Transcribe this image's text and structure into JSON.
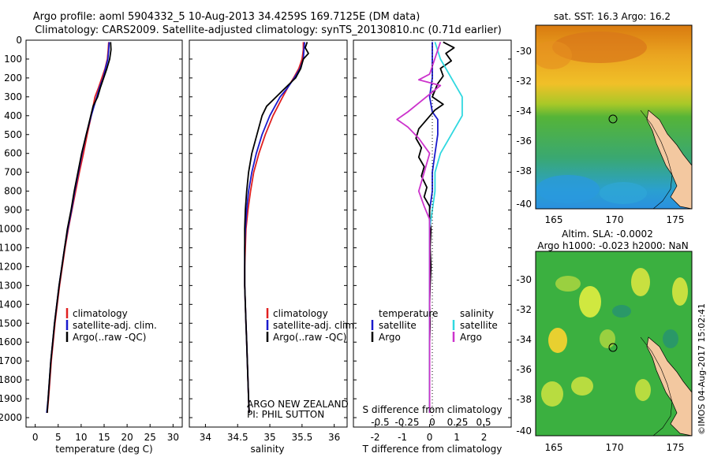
{
  "title": {
    "line1": "Argo profile: aoml 5904332_5 10-Aug-2013 34.4259S 169.7125E (DM data)",
    "line2": "Climatology: CARS2009. Satellite-adjusted climatology: synTS_20130810.nc (0.71d earlier)"
  },
  "colors": {
    "climatology": "#e02020",
    "satellite": "#1a1acc",
    "argo": "#000000",
    "sat_cyan": "#30d8e0",
    "argo_mag": "#cc33cc",
    "land": "#f3c8a0"
  },
  "chart_data": [
    {
      "type": "line",
      "id": "temperature",
      "xlabel": "temperature (deg C)",
      "xlim": [
        -2,
        32
      ],
      "xticks": [
        0,
        5,
        10,
        15,
        20,
        25,
        30
      ],
      "ylim": [
        2050,
        0
      ],
      "yticks": [
        0,
        100,
        200,
        300,
        400,
        500,
        600,
        700,
        800,
        900,
        1000,
        1100,
        1200,
        1300,
        1400,
        1500,
        1600,
        1700,
        1800,
        1900,
        2000
      ],
      "legend": [
        "climatology",
        "satellite-adj. clim.",
        "Argo(..raw -QC)"
      ],
      "series": [
        {
          "name": "climatology",
          "color": "#e02020",
          "points": [
            [
              16.0,
              10
            ],
            [
              15.9,
              50
            ],
            [
              15.7,
              100
            ],
            [
              15.2,
              150
            ],
            [
              14.5,
              200
            ],
            [
              13.8,
              250
            ],
            [
              13.0,
              300
            ],
            [
              12.2,
              400
            ],
            [
              11.3,
              500
            ],
            [
              10.5,
              600
            ],
            [
              9.6,
              700
            ],
            [
              8.8,
              800
            ],
            [
              8.0,
              900
            ],
            [
              7.2,
              1000
            ],
            [
              6.5,
              1100
            ],
            [
              5.9,
              1200
            ],
            [
              5.3,
              1300
            ],
            [
              4.8,
              1400
            ],
            [
              4.3,
              1500
            ],
            [
              3.9,
              1600
            ],
            [
              3.5,
              1700
            ],
            [
              3.2,
              1800
            ],
            [
              2.9,
              1900
            ],
            [
              2.6,
              1975
            ]
          ]
        },
        {
          "name": "satellite-adj. clim.",
          "color": "#1a1acc",
          "points": [
            [
              16.1,
              10
            ],
            [
              16.0,
              50
            ],
            [
              15.8,
              100
            ],
            [
              15.3,
              150
            ],
            [
              14.8,
              200
            ],
            [
              14.0,
              250
            ],
            [
              13.4,
              300
            ],
            [
              12.2,
              400
            ],
            [
              11.1,
              500
            ],
            [
              10.2,
              600
            ],
            [
              9.4,
              700
            ],
            [
              8.6,
              800
            ],
            [
              7.9,
              900
            ],
            [
              7.1,
              1000
            ],
            [
              6.4,
              1100
            ],
            [
              5.8,
              1200
            ],
            [
              5.2,
              1300
            ],
            [
              4.7,
              1400
            ],
            [
              4.2,
              1500
            ],
            [
              3.8,
              1600
            ],
            [
              3.4,
              1700
            ],
            [
              3.1,
              1800
            ],
            [
              2.8,
              1900
            ],
            [
              2.5,
              1975
            ]
          ]
        },
        {
          "name": "Argo(..raw -QC)",
          "color": "#000000",
          "points": [
            [
              16.4,
              10
            ],
            [
              16.5,
              50
            ],
            [
              16.2,
              100
            ],
            [
              15.6,
              150
            ],
            [
              14.9,
              200
            ],
            [
              14.2,
              250
            ],
            [
              13.6,
              300
            ],
            [
              12.6,
              350
            ],
            [
              12.1,
              400
            ],
            [
              11.1,
              500
            ],
            [
              10.1,
              600
            ],
            [
              9.3,
              700
            ],
            [
              8.5,
              800
            ],
            [
              7.8,
              900
            ],
            [
              7.0,
              1000
            ],
            [
              6.4,
              1100
            ],
            [
              5.8,
              1200
            ],
            [
              5.2,
              1300
            ],
            [
              4.7,
              1400
            ],
            [
              4.2,
              1500
            ],
            [
              3.8,
              1600
            ],
            [
              3.4,
              1700
            ],
            [
              3.1,
              1800
            ],
            [
              2.8,
              1900
            ],
            [
              2.6,
              1975
            ]
          ]
        }
      ]
    },
    {
      "type": "line",
      "id": "salinity",
      "xlabel": "salinity",
      "xlim": [
        33.75,
        36.2
      ],
      "xticks": [
        34,
        34.5,
        35,
        35.5,
        36
      ],
      "ylim": [
        2050,
        0
      ],
      "legend": [
        "climatology",
        "satellite-adj. clim.",
        "Argo(..raw -QC)"
      ],
      "annotations": [
        "ARGO NEW ZEALAND",
        "PI: PHIL SUTTON"
      ],
      "series": [
        {
          "name": "climatology",
          "color": "#e02020",
          "points": [
            [
              35.52,
              10
            ],
            [
              35.52,
              50
            ],
            [
              35.5,
              100
            ],
            [
              35.45,
              150
            ],
            [
              35.37,
              200
            ],
            [
              35.28,
              250
            ],
            [
              35.2,
              300
            ],
            [
              35.05,
              400
            ],
            [
              34.93,
              500
            ],
            [
              34.83,
              600
            ],
            [
              34.75,
              700
            ],
            [
              34.7,
              800
            ],
            [
              34.66,
              900
            ],
            [
              34.63,
              1000
            ],
            [
              34.62,
              1100
            ],
            [
              34.61,
              1200
            ],
            [
              34.61,
              1300
            ],
            [
              34.62,
              1400
            ],
            [
              34.63,
              1500
            ],
            [
              34.64,
              1600
            ],
            [
              34.65,
              1700
            ],
            [
              34.66,
              1800
            ],
            [
              34.67,
              1900
            ],
            [
              34.68,
              1975
            ]
          ]
        },
        {
          "name": "satellite-adj. clim.",
          "color": "#1a1acc",
          "points": [
            [
              35.54,
              10
            ],
            [
              35.53,
              50
            ],
            [
              35.52,
              100
            ],
            [
              35.47,
              150
            ],
            [
              35.38,
              200
            ],
            [
              35.28,
              250
            ],
            [
              35.16,
              300
            ],
            [
              35.0,
              400
            ],
            [
              34.88,
              500
            ],
            [
              34.79,
              600
            ],
            [
              34.72,
              700
            ],
            [
              34.67,
              800
            ],
            [
              34.64,
              900
            ],
            [
              34.62,
              1000
            ],
            [
              34.61,
              1100
            ],
            [
              34.61,
              1200
            ],
            [
              34.61,
              1300
            ],
            [
              34.62,
              1400
            ],
            [
              34.63,
              1500
            ],
            [
              34.64,
              1600
            ],
            [
              34.65,
              1700
            ],
            [
              34.66,
              1800
            ],
            [
              34.67,
              1900
            ],
            [
              34.68,
              1975
            ]
          ]
        },
        {
          "name": "Argo(..raw -QC)",
          "color": "#000000",
          "points": [
            [
              35.58,
              10
            ],
            [
              35.55,
              40
            ],
            [
              35.6,
              70
            ],
            [
              35.52,
              100
            ],
            [
              35.48,
              150
            ],
            [
              35.4,
              200
            ],
            [
              35.25,
              250
            ],
            [
              35.1,
              300
            ],
            [
              34.95,
              350
            ],
            [
              34.88,
              400
            ],
            [
              34.8,
              500
            ],
            [
              34.72,
              600
            ],
            [
              34.67,
              700
            ],
            [
              34.64,
              800
            ],
            [
              34.62,
              900
            ],
            [
              34.61,
              1000
            ],
            [
              34.61,
              1100
            ],
            [
              34.61,
              1200
            ],
            [
              34.61,
              1300
            ],
            [
              34.62,
              1400
            ],
            [
              34.63,
              1500
            ],
            [
              34.64,
              1600
            ],
            [
              34.65,
              1700
            ],
            [
              34.66,
              1800
            ],
            [
              34.67,
              1900
            ],
            [
              34.68,
              1975
            ]
          ]
        }
      ]
    },
    {
      "type": "line",
      "id": "differences",
      "xlabel_top": "S difference from climatology",
      "xticks_top": [
        "-0.5",
        "-0.25",
        "0",
        "0.25",
        "0.5"
      ],
      "xlabel_bottom": "T difference from climatology",
      "xticks_bottom": [
        "-2",
        "-1",
        "0",
        "1",
        "2"
      ],
      "xlim": [
        -2.8,
        3.0
      ],
      "ylim": [
        2050,
        0
      ],
      "legend_temperature": {
        "title": "temperature",
        "items": [
          "satellite",
          "Argo"
        ]
      },
      "legend_salinity": {
        "title": "salinity",
        "items": [
          "satellite",
          "Argo"
        ]
      },
      "series": [
        {
          "name": "T satellite",
          "color": "#1a1acc",
          "points": [
            [
              0.1,
              10
            ],
            [
              0.1,
              100
            ],
            [
              0.1,
              200
            ],
            [
              0.0,
              300
            ],
            [
              0.1,
              380
            ],
            [
              0.3,
              420
            ],
            [
              0.3,
              500
            ],
            [
              0.2,
              600
            ],
            [
              0.1,
              700
            ],
            [
              0.1,
              800
            ],
            [
              0.0,
              900
            ],
            [
              0.0,
              1000
            ],
            [
              0.0,
              1200
            ],
            [
              0.0,
              1400
            ],
            [
              0.0,
              1600
            ],
            [
              0.0,
              1800
            ],
            [
              0.0,
              1975
            ]
          ]
        },
        {
          "name": "T Argo",
          "color": "#000000",
          "points": [
            [
              0.5,
              10
            ],
            [
              0.9,
              40
            ],
            [
              0.6,
              70
            ],
            [
              0.8,
              110
            ],
            [
              0.4,
              150
            ],
            [
              0.5,
              190
            ],
            [
              0.3,
              230
            ],
            [
              0.1,
              300
            ],
            [
              0.5,
              340
            ],
            [
              0.2,
              370
            ],
            [
              -0.1,
              420
            ],
            [
              -0.4,
              470
            ],
            [
              -0.5,
              520
            ],
            [
              -0.3,
              570
            ],
            [
              -0.4,
              620
            ],
            [
              -0.2,
              670
            ],
            [
              -0.3,
              720
            ],
            [
              -0.1,
              780
            ],
            [
              -0.2,
              830
            ],
            [
              0.0,
              880
            ],
            [
              0.0,
              950
            ],
            [
              0.05,
              1000
            ],
            [
              0.02,
              1100
            ],
            [
              0.05,
              1200
            ],
            [
              0.02,
              1300
            ],
            [
              0.0,
              1400
            ],
            [
              0.02,
              1500
            ],
            [
              0.0,
              1600
            ],
            [
              0.0,
              1700
            ],
            [
              0.0,
              1800
            ],
            [
              0.0,
              1900
            ],
            [
              0.0,
              1975
            ]
          ]
        },
        {
          "name": "S satellite",
          "color": "#30d8e0",
          "points": [
            [
              0.05,
              10
            ],
            [
              0.1,
              100
            ],
            [
              0.2,
              200
            ],
            [
              0.3,
              300
            ],
            [
              0.3,
              400
            ],
            [
              0.2,
              500
            ],
            [
              0.1,
              600
            ],
            [
              0.05,
              700
            ],
            [
              0.05,
              800
            ],
            [
              0.0,
              1000
            ],
            [
              0.0,
              1300
            ],
            [
              0.0,
              1600
            ],
            [
              0.0,
              1975
            ]
          ]
        },
        {
          "name": "S Argo",
          "color": "#cc33cc",
          "points": [
            [
              0.1,
              10
            ],
            [
              0.0,
              180
            ],
            [
              -0.1,
              210
            ],
            [
              0.1,
              240
            ],
            [
              -0.2,
              380
            ],
            [
              -0.3,
              420
            ],
            [
              -0.2,
              460
            ],
            [
              -0.1,
              520
            ],
            [
              0.0,
              600
            ],
            [
              -0.05,
              700
            ],
            [
              -0.1,
              800
            ],
            [
              -0.05,
              880
            ],
            [
              0.0,
              950
            ],
            [
              0.0,
              1000
            ],
            [
              0.0,
              1300
            ],
            [
              0.0,
              1600
            ],
            [
              0.0,
              1975
            ]
          ]
        }
      ]
    }
  ],
  "maps": {
    "sst": {
      "title": "sat. SST: 16.3 Argo: 16.2",
      "xticks": [
        "165",
        "170",
        "175"
      ],
      "yticks": [
        "-30",
        "-32",
        "-34",
        "-36",
        "-38",
        "-40"
      ]
    },
    "sla": {
      "title1": "Altim. SLA: -0.0002",
      "title2": "Argo h1000: -0.023 h2000: NaN",
      "xticks": [
        "165",
        "170",
        "175"
      ],
      "yticks": [
        "-30",
        "-32",
        "-34",
        "-36",
        "-38",
        "-40"
      ]
    }
  },
  "credit": "©IMOS 04-Aug-2017 15:02:41"
}
